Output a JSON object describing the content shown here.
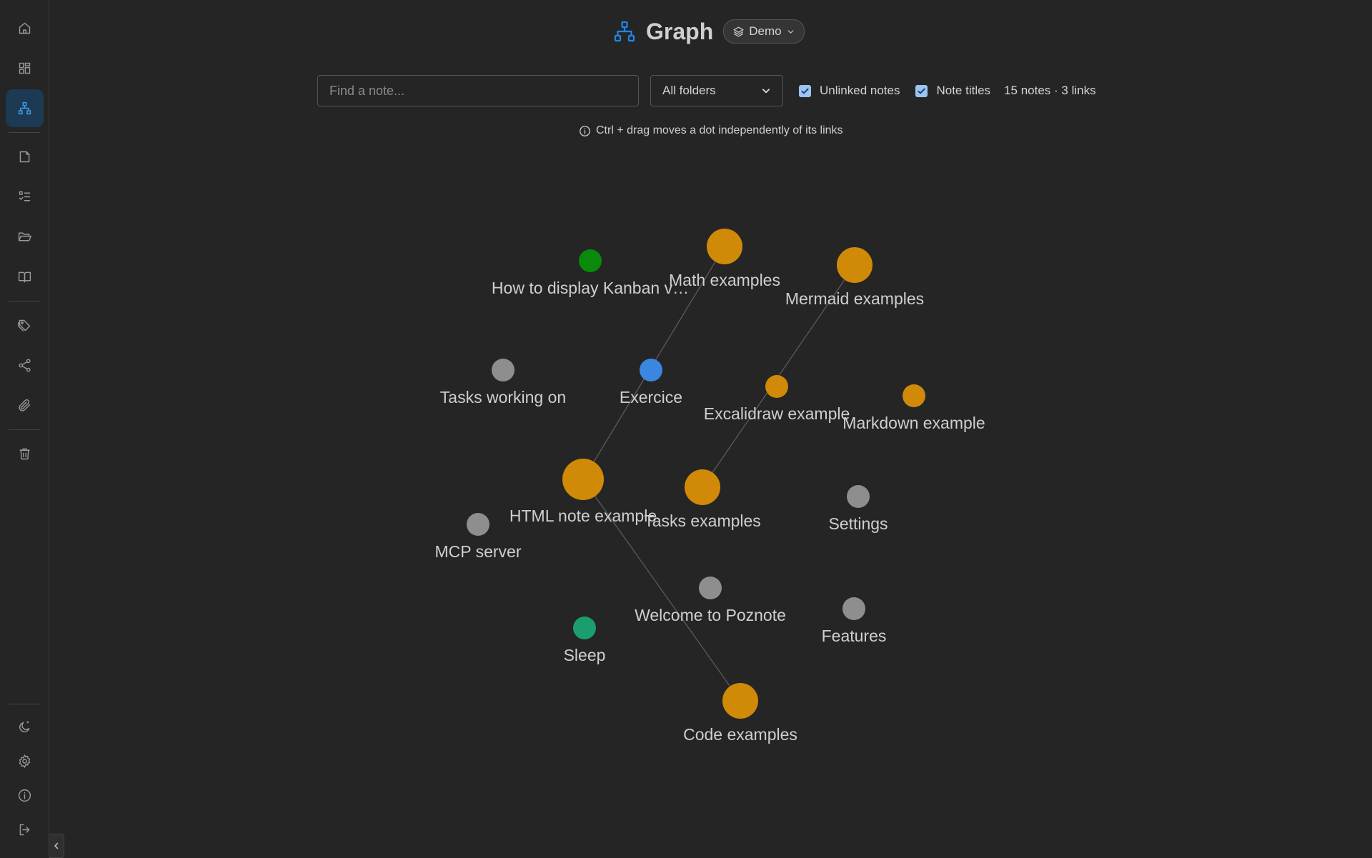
{
  "header": {
    "title": "Graph",
    "workspace": "Demo",
    "icon": "graph-icon"
  },
  "toolbar": {
    "search_placeholder": "Find a note...",
    "search_value": "",
    "folder_selected": "All folders",
    "unlinked_label": "Unlinked notes",
    "unlinked_checked": true,
    "titles_label": "Note titles",
    "titles_checked": true,
    "count": "15 notes · 3 links"
  },
  "hint": {
    "text": "Ctrl + drag moves a dot independently of its links",
    "icon": "info-icon"
  },
  "sidebar": {
    "items": [
      {
        "name": "home-icon",
        "active": false
      },
      {
        "name": "dashboard-icon",
        "active": false
      },
      {
        "name": "graph-icon",
        "active": true
      },
      {
        "name": "note-icon",
        "active": false
      },
      {
        "name": "tasklist-icon",
        "active": false
      },
      {
        "name": "folder-icon",
        "active": false
      },
      {
        "name": "book-icon",
        "active": false
      },
      {
        "name": "tags-icon",
        "active": false
      },
      {
        "name": "share-icon",
        "active": false
      },
      {
        "name": "attachment-icon",
        "active": false
      },
      {
        "name": "trash-icon",
        "active": false
      },
      {
        "name": "theme-icon",
        "active": false
      },
      {
        "name": "gear-icon",
        "active": false
      },
      {
        "name": "info-icon",
        "active": false
      },
      {
        "name": "logout-icon",
        "active": false
      }
    ]
  },
  "colors": {
    "accent": "#1e88e5",
    "orange": "#d08a08",
    "gray": "#8e8e8e",
    "green": "#0a8a0a",
    "teal": "#1a9e6e",
    "blue": "#3a86e0"
  },
  "graph": {
    "nodes": [
      {
        "label": "How to display Kanban v…",
        "color": "green"
      },
      {
        "label": "Math examples",
        "color": "orange"
      },
      {
        "label": "Mermaid examples",
        "color": "orange"
      },
      {
        "label": "Tasks working on",
        "color": "gray"
      },
      {
        "label": "Exercice",
        "color": "blue"
      },
      {
        "label": "Excalidraw example",
        "color": "orange"
      },
      {
        "label": "Markdown example",
        "color": "orange"
      },
      {
        "label": "HTML note example",
        "color": "orange"
      },
      {
        "label": "Tasks examples",
        "color": "orange"
      },
      {
        "label": "Settings",
        "color": "gray"
      },
      {
        "label": "MCP server",
        "color": "gray"
      },
      {
        "label": "Welcome to Poznote",
        "color": "gray"
      },
      {
        "label": "Features",
        "color": "gray"
      },
      {
        "label": "Sleep",
        "color": "teal"
      },
      {
        "label": "Code examples",
        "color": "orange"
      }
    ],
    "links": [
      [
        "Math examples",
        "HTML note example"
      ],
      [
        "Mermaid examples",
        "Tasks examples"
      ],
      [
        "HTML note example",
        "Code examples"
      ]
    ]
  }
}
